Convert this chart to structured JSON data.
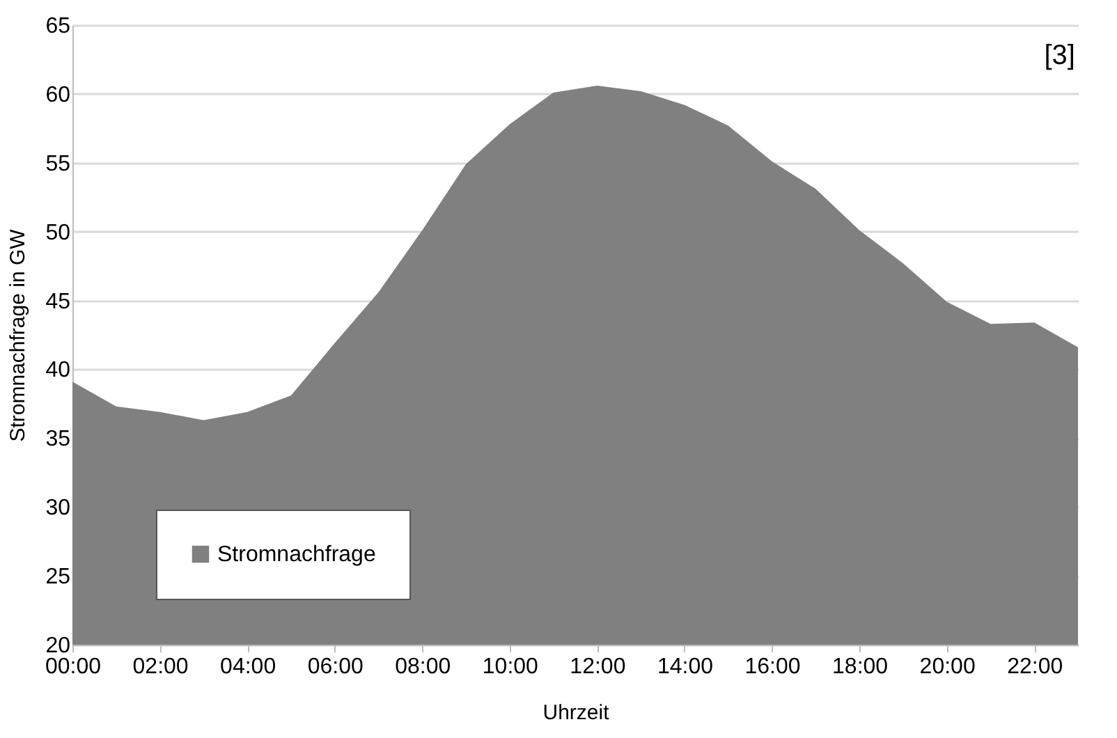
{
  "chart_data": {
    "type": "area",
    "xlabel": "Uhrzeit",
    "ylabel": "Stromnachfrage in GW",
    "x": [
      0,
      1,
      2,
      3,
      4,
      5,
      6,
      7,
      8,
      9,
      10,
      11,
      12,
      13,
      14,
      15,
      16,
      17,
      18,
      19,
      20,
      21,
      22,
      23
    ],
    "series": [
      {
        "name": "Stromnachfrage",
        "color": "#808080",
        "values": [
          39.1,
          37.3,
          36.9,
          36.3,
          36.9,
          38.1,
          41.9,
          45.6,
          50.1,
          54.9,
          57.8,
          60.1,
          60.6,
          60.2,
          59.2,
          57.7,
          55.1,
          53.1,
          50.1,
          47.7,
          44.9,
          43.3,
          43.4,
          41.6
        ]
      }
    ],
    "xlim": [
      0,
      23
    ],
    "xticks": [
      {
        "value": 0,
        "label": "00:00"
      },
      {
        "value": 2,
        "label": "02:00"
      },
      {
        "value": 4,
        "label": "04:00"
      },
      {
        "value": 6,
        "label": "06:00"
      },
      {
        "value": 8,
        "label": "08:00"
      },
      {
        "value": 10,
        "label": "10:00"
      },
      {
        "value": 12,
        "label": "12:00"
      },
      {
        "value": 14,
        "label": "14:00"
      },
      {
        "value": 16,
        "label": "16:00"
      },
      {
        "value": 18,
        "label": "18:00"
      },
      {
        "value": 20,
        "label": "20:00"
      },
      {
        "value": 22,
        "label": "22:00"
      }
    ],
    "ylim": [
      20,
      65
    ],
    "yticks": [
      20,
      25,
      30,
      35,
      40,
      45,
      50,
      55,
      60,
      65
    ],
    "grid": "y",
    "legend": "bottom left",
    "annotations": [
      "[3]"
    ]
  }
}
